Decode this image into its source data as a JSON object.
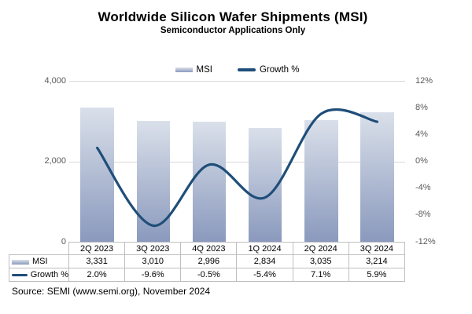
{
  "title": "Worldwide Silicon Wafer Shipments (MSI)",
  "subtitle": "Semiconductor Applications Only",
  "legend": {
    "msi": "MSI",
    "growth": "Growth %"
  },
  "axes": {
    "left_ticks": [
      "4,000",
      "2,000",
      "0"
    ],
    "right_ticks": [
      "12%",
      "8%",
      "4%",
      "0%",
      "-4%",
      "-8%",
      "-12%"
    ]
  },
  "chart_data": {
    "type": "combo",
    "categories": [
      "2Q 2023",
      "3Q 2023",
      "4Q 2023",
      "1Q 2024",
      "2Q 2024",
      "3Q 2024"
    ],
    "series": [
      {
        "name": "MSI",
        "type": "bar",
        "axis": "left",
        "values": [
          3331,
          3010,
          2996,
          2834,
          3035,
          3214
        ]
      },
      {
        "name": "Growth %",
        "type": "line",
        "axis": "right",
        "smooth": true,
        "values": [
          2.0,
          -9.6,
          -0.5,
          -5.4,
          7.1,
          5.9
        ]
      }
    ],
    "title": "Worldwide Silicon Wafer Shipments (MSI)",
    "subtitle": "Semiconductor Applications Only",
    "left_ylim": [
      0,
      4000
    ],
    "right_ylim": [
      -12,
      12
    ],
    "grid": "horizontal lines at left 2,000 / 4,000 (right 0% / 12%)",
    "legend_position": "top"
  },
  "table": {
    "categories": [
      "2Q 2023",
      "3Q 2023",
      "4Q 2023",
      "1Q 2024",
      "2Q 2024",
      "3Q 2024"
    ],
    "rows": [
      {
        "label": "MSI",
        "values": [
          "3,331",
          "3,010",
          "2,996",
          "2,834",
          "3,035",
          "3,214"
        ]
      },
      {
        "label": "Growth %",
        "values": [
          "2.0%",
          "-9.6%",
          "-0.5%",
          "-5.4%",
          "7.1%",
          "5.9%"
        ]
      }
    ]
  },
  "source": "Source: SEMI (www.semi.org), November 2024",
  "colors": {
    "line": "#1f4e79",
    "bar_top": "#dae0ea",
    "bar_bottom": "#8a99bd",
    "gridline": "#d9d9d9",
    "table_border": "#bfbfbf",
    "axis_text": "#595959"
  }
}
